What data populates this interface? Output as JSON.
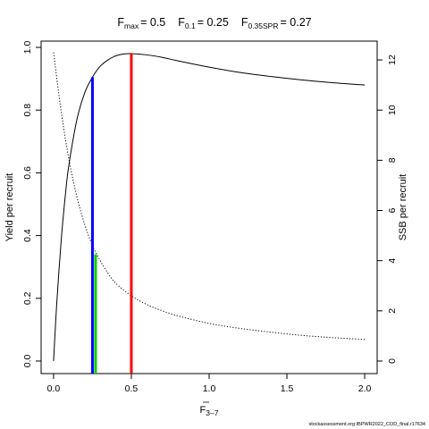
{
  "chart_data": {
    "type": "line",
    "title": {
      "fmax": {
        "main": "F",
        "sub": "max",
        "rest": "= 0.5"
      },
      "f01": {
        "main": "F",
        "sub": "0.1",
        "rest": "= 0.25"
      },
      "fspr": {
        "main": "F",
        "sub": "0.35SPR",
        "rest": "= 0.27"
      }
    },
    "xlabel": {
      "main": "F",
      "sub": "3–7"
    },
    "ylabel_left": "Yield per recruit",
    "ylabel_right": "SSB per recruit",
    "xlim": [
      -0.08,
      2.08
    ],
    "ylim_left": [
      -0.04,
      1.02
    ],
    "ylim_right": [
      -0.5,
      12.75
    ],
    "x_ticks": [
      0.0,
      0.5,
      1.0,
      1.5,
      2.0
    ],
    "x_tick_labels": [
      "0.0",
      "0.5",
      "1.0",
      "1.5",
      "2.0"
    ],
    "y_left_ticks": [
      0.0,
      0.2,
      0.4,
      0.6,
      0.8,
      1.0
    ],
    "y_left_tick_labels": [
      "0.0",
      "0.2",
      "0.4",
      "0.6",
      "0.8",
      "1.0"
    ],
    "y_right_ticks": [
      0,
      2,
      4,
      6,
      8,
      10,
      12
    ],
    "y_right_tick_labels": [
      "0",
      "2",
      "4",
      "6",
      "8",
      "10",
      "12"
    ],
    "series": [
      {
        "axis": "left",
        "style": "solid",
        "color": "#000000",
        "x": [
          0,
          0.02,
          0.05,
          0.08,
          0.1,
          0.15,
          0.2,
          0.25,
          0.3,
          0.35,
          0.4,
          0.45,
          0.5,
          0.6,
          0.7,
          0.8,
          1.0,
          1.2,
          1.4,
          1.6,
          1.8,
          2.0
        ],
        "y": [
          0.0,
          0.18,
          0.39,
          0.55,
          0.63,
          0.77,
          0.855,
          0.905,
          0.94,
          0.96,
          0.973,
          0.979,
          0.98,
          0.976,
          0.968,
          0.957,
          0.937,
          0.92,
          0.907,
          0.896,
          0.887,
          0.88
        ]
      },
      {
        "axis": "right",
        "style": "dotted",
        "color": "#000000",
        "x": [
          0,
          0.05,
          0.1,
          0.15,
          0.2,
          0.25,
          0.3,
          0.35,
          0.4,
          0.5,
          0.6,
          0.7,
          0.8,
          1.0,
          1.2,
          1.4,
          1.6,
          1.8,
          2.0
        ],
        "y": [
          12.3,
          9.9,
          8.0,
          6.55,
          5.45,
          4.6,
          4.0,
          3.5,
          3.1,
          2.6,
          2.25,
          2.0,
          1.8,
          1.5,
          1.3,
          1.15,
          1.02,
          0.93,
          0.86
        ]
      }
    ],
    "reference_lines": [
      {
        "x": 0.25,
        "y": 0.905,
        "color": "#0000ff"
      },
      {
        "x": 0.27,
        "y": 0.34,
        "color": "#00cc00"
      },
      {
        "x": 0.5,
        "y": 0.98,
        "color": "#ff0000"
      }
    ]
  },
  "footer": "stockassessment.org:IBPWR2022_COD_final.r17634"
}
